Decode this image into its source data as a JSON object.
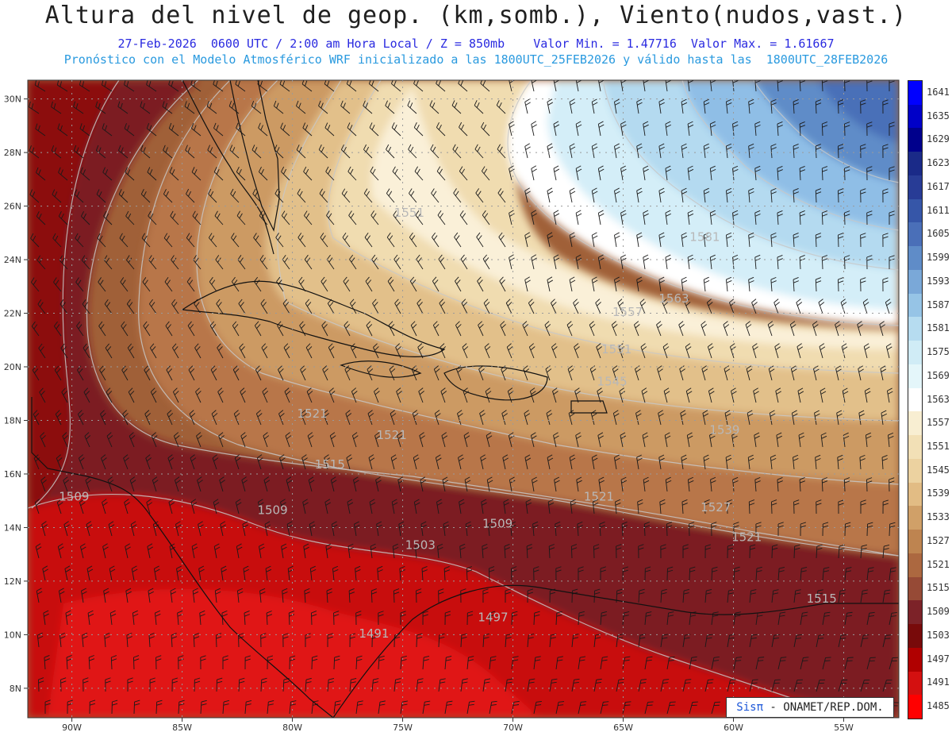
{
  "header": {
    "title": "Altura del nivel de geop. (km,somb.), Viento(nudos,vast.)",
    "subtitle_line1": "27-Feb-2026  0600 UTC / 2:00 am Hora Local / Z = 850mb    Valor Min. = 1.47716  Valor Max. = 1.61667",
    "subtitle_line2": "Pronóstico con el Modelo Atmosférico WRF inicializado a las 1800UTC_25FEB2026 y válido hasta las  1800UTC_28FEB2026"
  },
  "map": {
    "lon_range": [
      -92,
      -52.5
    ],
    "lat_range": [
      6.9,
      30.7
    ],
    "lat_ticks": [
      "8N",
      "10N",
      "12N",
      "14N",
      "16N",
      "18N",
      "20N",
      "22N",
      "24N",
      "26N",
      "28N",
      "30N"
    ],
    "lat_values": [
      8,
      10,
      12,
      14,
      16,
      18,
      20,
      22,
      24,
      26,
      28,
      30
    ],
    "lon_ticks": [
      "90W",
      "85W",
      "80W",
      "75W",
      "70W",
      "65W",
      "60W",
      "55W"
    ],
    "lon_values": [
      -90,
      -85,
      -80,
      -75,
      -70,
      -65,
      -60,
      -55
    ],
    "contour_labels": [
      {
        "text": "1551",
        "lon": -74.7,
        "lat": 25.6
      },
      {
        "text": "1581",
        "lon": -61.3,
        "lat": 24.7
      },
      {
        "text": "1563",
        "lon": -62.7,
        "lat": 22.4
      },
      {
        "text": "1557",
        "lon": -64.8,
        "lat": 21.9
      },
      {
        "text": "1551",
        "lon": -65.3,
        "lat": 20.5
      },
      {
        "text": "1545",
        "lon": -65.5,
        "lat": 19.3
      },
      {
        "text": "1539",
        "lon": -60.4,
        "lat": 17.5
      },
      {
        "text": "1527",
        "lon": -60.8,
        "lat": 14.6
      },
      {
        "text": "1521",
        "lon": -79.1,
        "lat": 18.1
      },
      {
        "text": "1521",
        "lon": -75.5,
        "lat": 17.3
      },
      {
        "text": "1521",
        "lon": -66.1,
        "lat": 15.0
      },
      {
        "text": "1521",
        "lon": -59.4,
        "lat": 13.5
      },
      {
        "text": "1515",
        "lon": -78.3,
        "lat": 16.2
      },
      {
        "text": "1515",
        "lon": -56.0,
        "lat": 11.2
      },
      {
        "text": "1509",
        "lon": -89.9,
        "lat": 15.0
      },
      {
        "text": "1509",
        "lon": -80.9,
        "lat": 14.5
      },
      {
        "text": "1509",
        "lon": -70.7,
        "lat": 14.0
      },
      {
        "text": "1503",
        "lon": -74.2,
        "lat": 13.2
      },
      {
        "text": "1497",
        "lon": -70.9,
        "lat": 10.5
      },
      {
        "text": "1491",
        "lon": -76.3,
        "lat": 9.9
      }
    ]
  },
  "colorbar": {
    "labels": [
      "1641",
      "1635",
      "1629",
      "1623",
      "1617",
      "1611",
      "1605",
      "1599",
      "1593",
      "1587",
      "1581",
      "1575",
      "1569",
      "1563",
      "1557",
      "1551",
      "1545",
      "1539",
      "1533",
      "1527",
      "1521",
      "1515",
      "1509",
      "1503",
      "1497",
      "1491",
      "1485"
    ],
    "colors": [
      "#0000ff",
      "#0000c8",
      "#00008c",
      "#1a2a88",
      "#283c96",
      "#3656a8",
      "#4a6fb8",
      "#5f8cc8",
      "#7aa8d8",
      "#96c4e6",
      "#b6dcf0",
      "#d0ecf6",
      "#e4f6fa",
      "#ffffff",
      "#f8eed2",
      "#f2e0b6",
      "#ecd2a0",
      "#e2bc84",
      "#d0a068",
      "#be8450",
      "#ac6840",
      "#964a36",
      "#7c2228",
      "#780a0a",
      "#b00000",
      "#d41010",
      "#ff0000"
    ]
  },
  "credit": {
    "sis": "Sisπ",
    "rest": " - ONAMET/REP.DOM."
  }
}
